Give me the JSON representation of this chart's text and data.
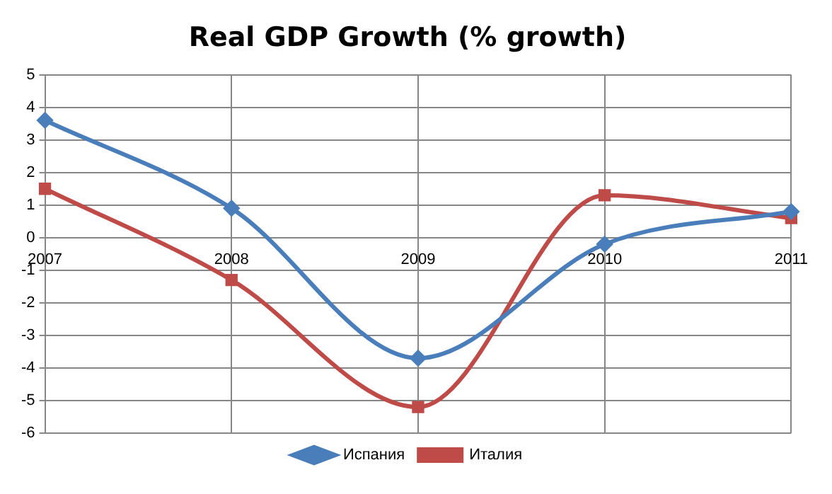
{
  "chart_data": {
    "type": "line",
    "title": "Real GDP Growth (% growth)",
    "categories": [
      "2007",
      "2008",
      "2009",
      "2010",
      "2011"
    ],
    "series": [
      {
        "name": "Испания",
        "color": "#4a7ebb",
        "marker": "diamond",
        "values": [
          3.6,
          0.9,
          -3.7,
          -0.2,
          0.8
        ]
      },
      {
        "name": "Италия",
        "color": "#be4b48",
        "marker": "square",
        "values": [
          1.5,
          -1.3,
          -5.2,
          1.3,
          0.6
        ]
      }
    ],
    "ylim": [
      -6,
      5
    ],
    "yticks": [
      -6,
      -5,
      -4,
      -3,
      -2,
      -1,
      0,
      1,
      2,
      3,
      4,
      5
    ],
    "grid": true,
    "legend": "bottom",
    "line_style": "solid"
  }
}
